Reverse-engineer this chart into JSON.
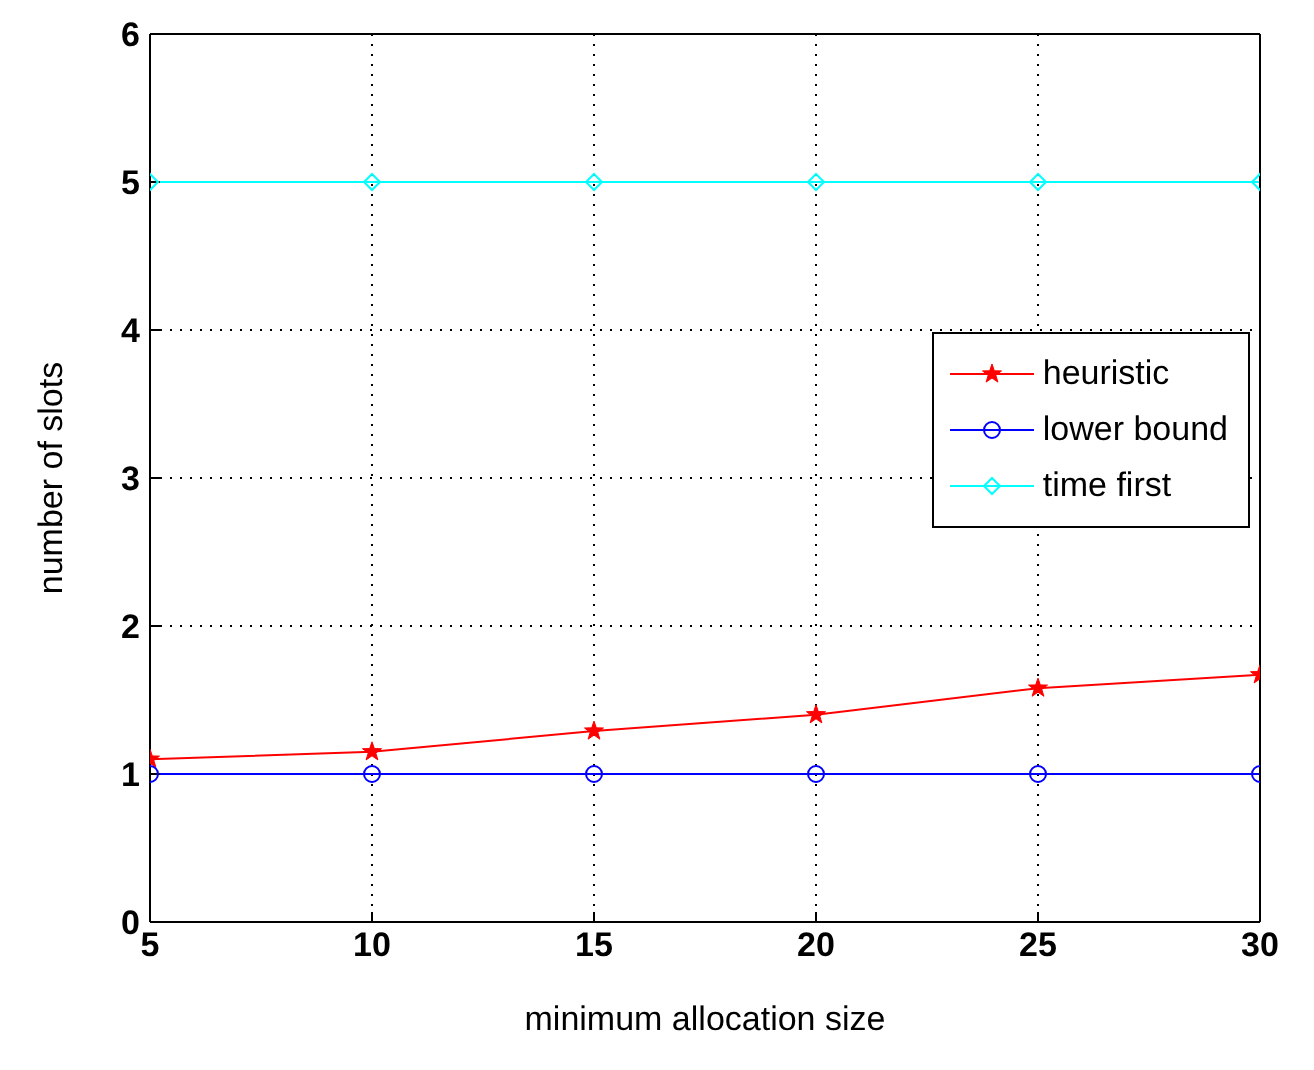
{
  "chart_data": {
    "type": "line",
    "xlabel": "minimum allocation size",
    "ylabel": "number of slots",
    "x": [
      5,
      10,
      15,
      20,
      25,
      30
    ],
    "series": [
      {
        "name": "heuristic",
        "color": "#ff0000",
        "marker": "star",
        "values": [
          1.1,
          1.15,
          1.29,
          1.4,
          1.58,
          1.67
        ]
      },
      {
        "name": "lower bound",
        "color": "#0000ff",
        "marker": "circle",
        "values": [
          1,
          1,
          1,
          1,
          1,
          1
        ]
      },
      {
        "name": "time first",
        "color": "#00ffff",
        "marker": "diamond",
        "values": [
          5,
          5,
          5,
          5,
          5,
          5
        ]
      }
    ],
    "xlim": [
      5,
      30
    ],
    "xticks": [
      5,
      10,
      15,
      20,
      25,
      30
    ],
    "ylim": [
      0,
      6
    ],
    "yticks": [
      0,
      1,
      2,
      3,
      4,
      5,
      6
    ],
    "grid": true,
    "legend": "right",
    "line_style": "solid"
  }
}
